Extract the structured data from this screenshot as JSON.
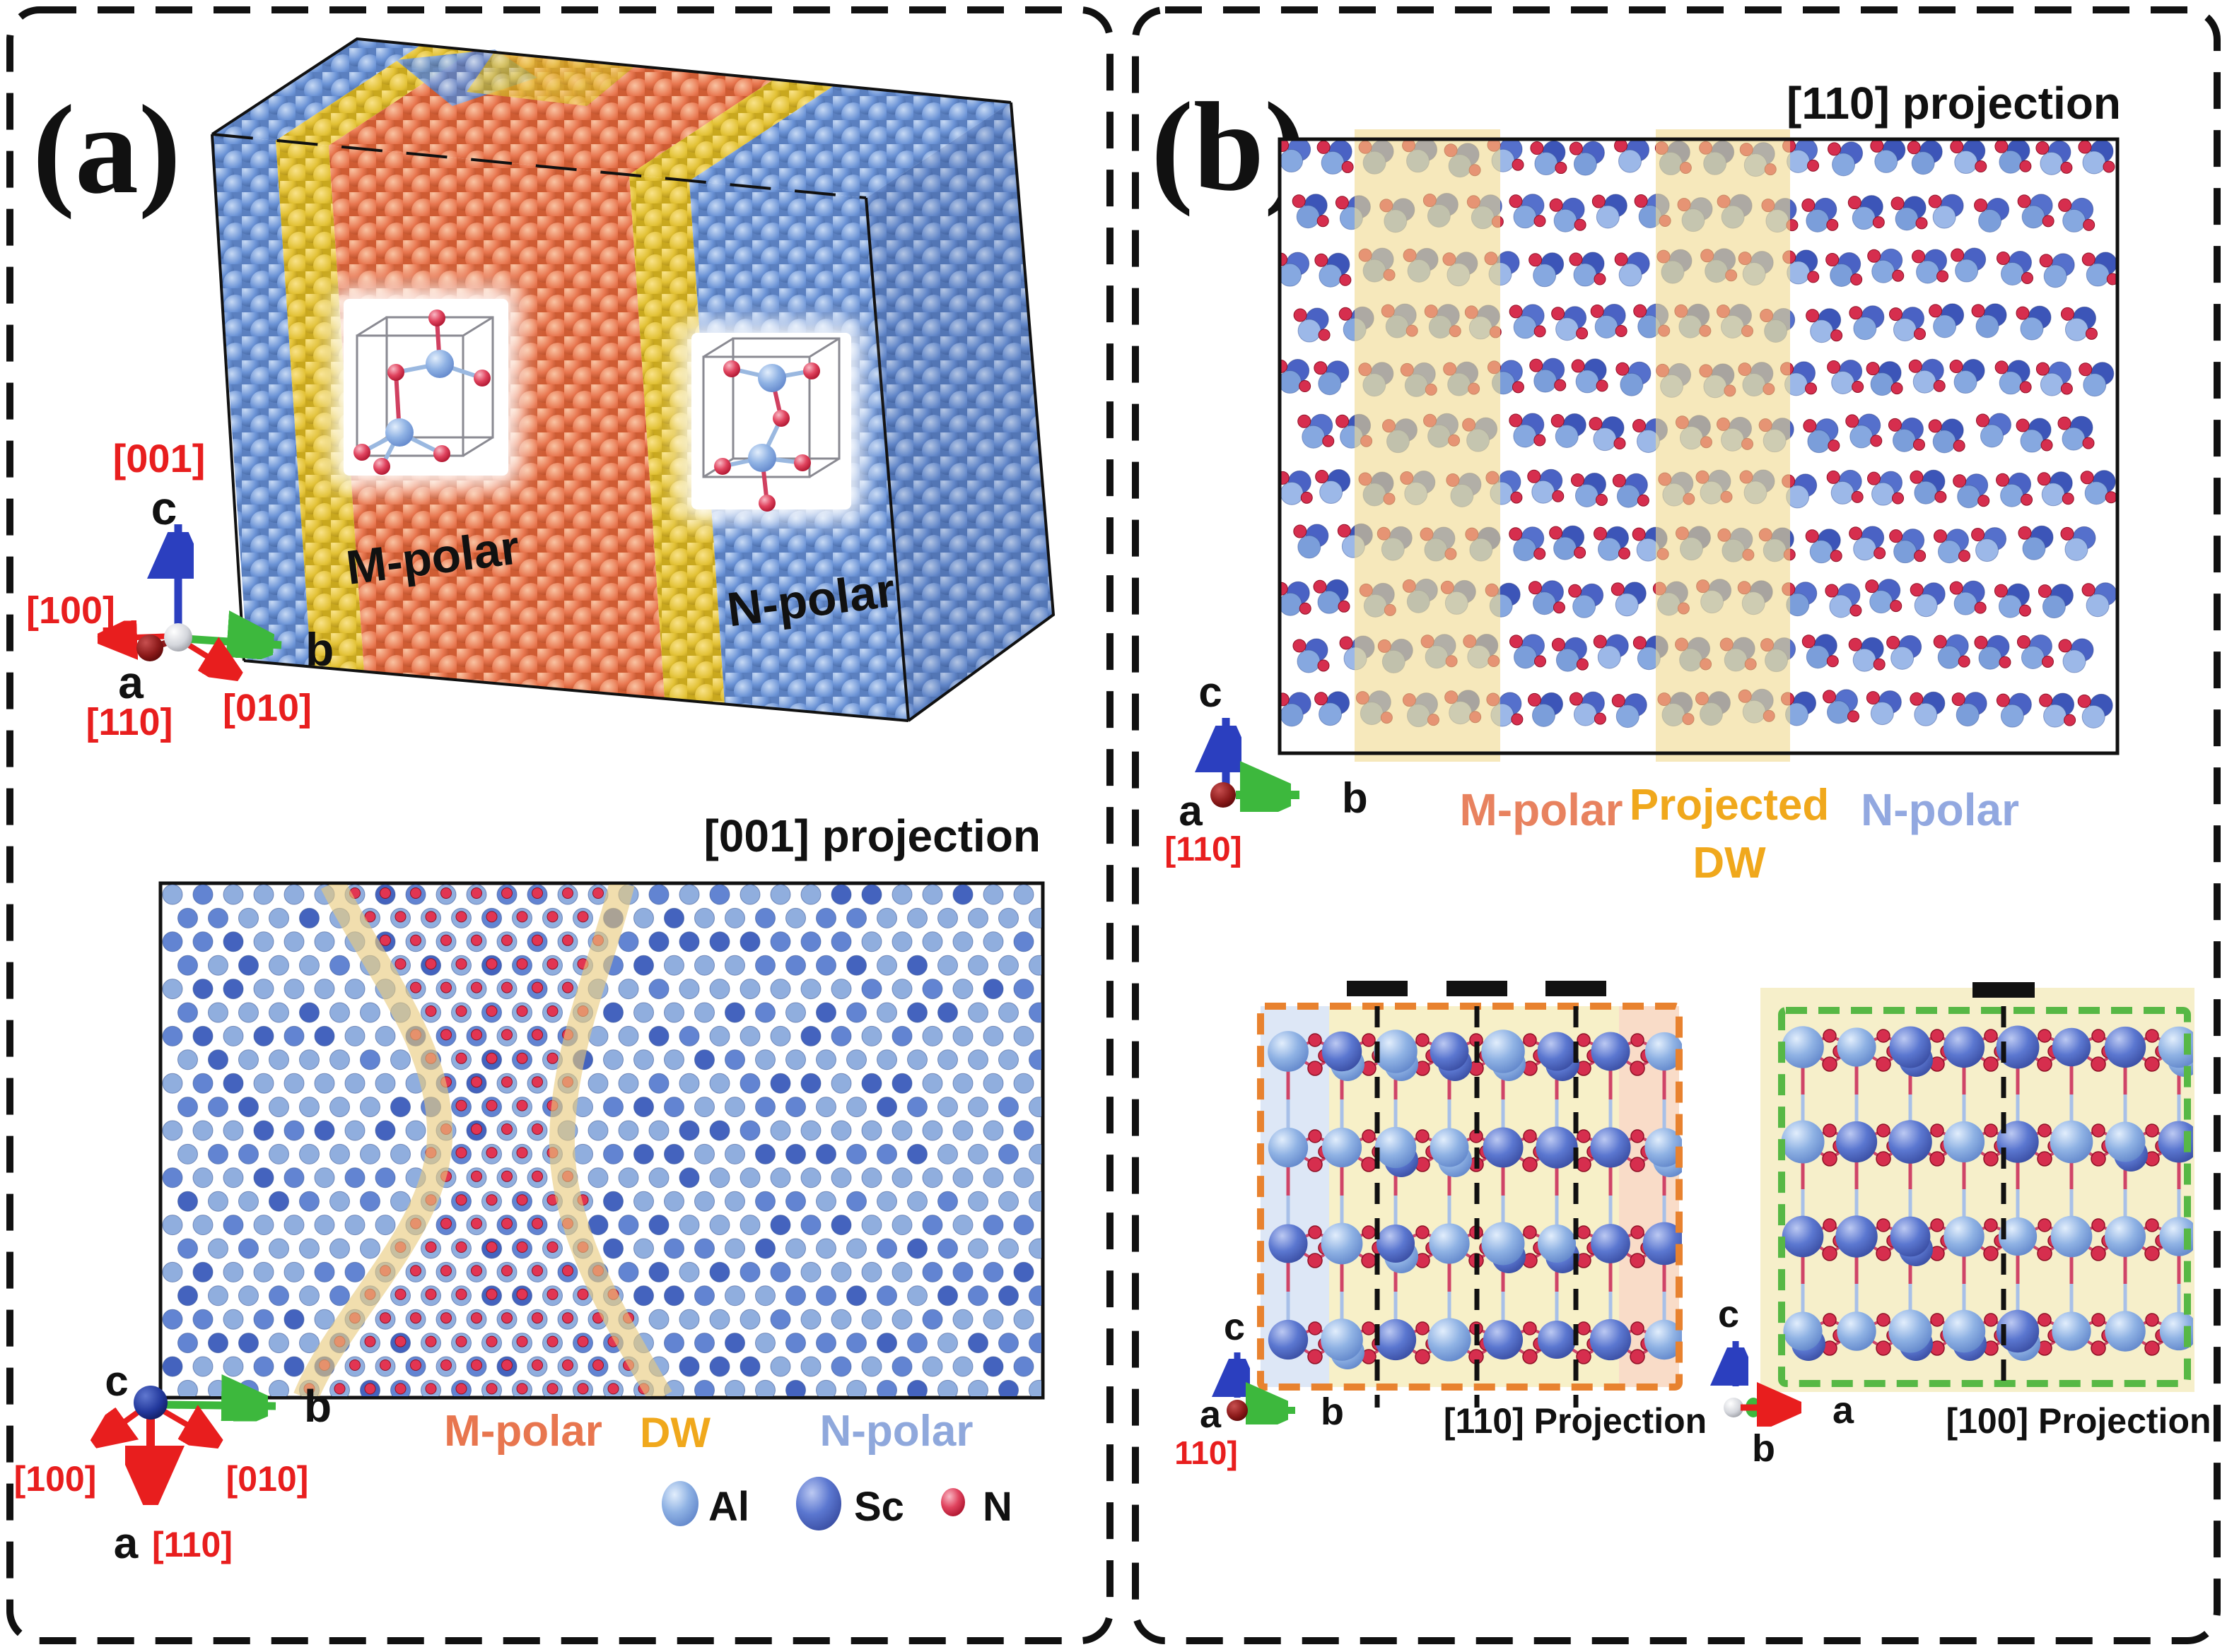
{
  "figure": {
    "description": "Atomistic structure figure of M-polar / N-polar domains and domain walls"
  },
  "panel_a": {
    "label": "(a)",
    "axes_3d": {
      "c_dir": "[001]",
      "c": "c",
      "x_dir": "[100]",
      "a": "a",
      "a_dir": "[110]",
      "y_dir": "[010]",
      "b": "b"
    },
    "block": {
      "m_polar": "M-polar",
      "n_polar": "N-polar"
    },
    "projection": {
      "title": "[001] projection"
    },
    "axes_proj": {
      "c": "c",
      "b": "b",
      "x_dir": "[100]",
      "y_dir": "[010]",
      "a": "a",
      "a_dir": "[110]"
    },
    "regions": {
      "m_polar": "M-polar",
      "dw": "DW",
      "n_polar": "N-polar"
    },
    "legend": [
      {
        "symbol": "Al",
        "color": "#8fb2e4"
      },
      {
        "symbol": "Sc",
        "color": "#5b77d0"
      },
      {
        "symbol": "N",
        "color": "#e0435e"
      }
    ]
  },
  "panel_b": {
    "label": "(b)",
    "projection": {
      "title": "[110] projection"
    },
    "axes_top": {
      "c": "c",
      "a": "a",
      "b": "b",
      "a_dir": "[110]"
    },
    "regions": {
      "m_polar": "M-polar",
      "dw_line1": "Projected",
      "dw_line2": "DW",
      "n_polar": "N-polar"
    },
    "sub_left": {
      "title": "[110] Projection",
      "axes": {
        "c": "c",
        "a": "a",
        "b": "b",
        "a_dir": "110]"
      }
    },
    "sub_right": {
      "title": "[100] Projection",
      "axes": {
        "c": "c",
        "a": "a",
        "b": "b"
      }
    }
  },
  "colors": {
    "m_polar_text": "#e8764f",
    "dw_text": "#f0a81c",
    "n_polar_text": "#8fa8dc",
    "al": "#8fb2e4",
    "sc": "#5b77d0",
    "nitrogen": "#e0435e",
    "dw_band": "#eed28a",
    "orange_box": "#e8822f",
    "green_box": "#57b845"
  }
}
